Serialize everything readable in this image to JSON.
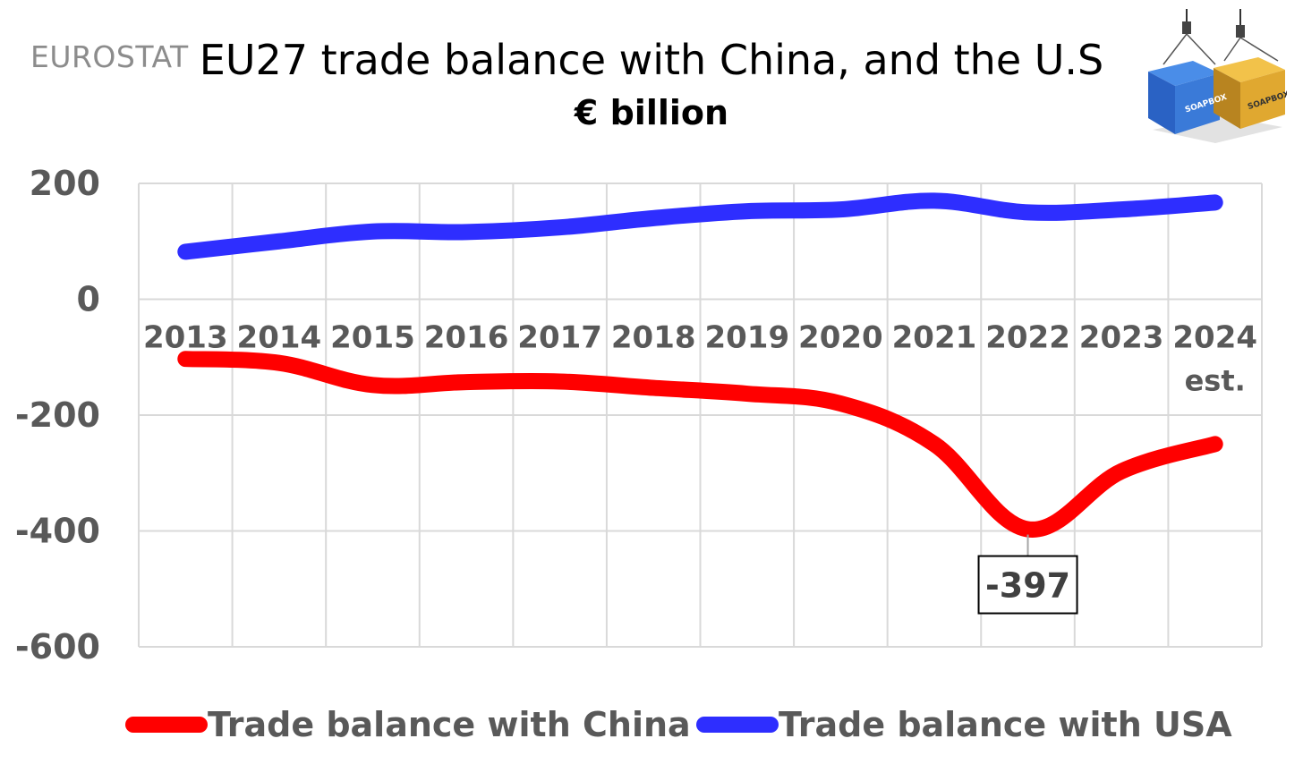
{
  "source_label": "EUROSTAT",
  "chart_data": {
    "type": "line",
    "title": "EU27 trade balance with China, and the U.S",
    "subtitle": "€ billion",
    "categories": [
      "2013",
      "2014",
      "2015",
      "2016",
      "2017",
      "2018",
      "2019",
      "2020",
      "2021",
      "2022",
      "2023",
      "2024"
    ],
    "category_sublabels": [
      "",
      "",
      "",
      "",
      "",
      "",
      "",
      "",
      "",
      "",
      "",
      "est."
    ],
    "series": [
      {
        "name": "Trade balance with China",
        "color": "#ff0000",
        "values": [
          -103,
          -110,
          -148,
          -143,
          -142,
          -153,
          -163,
          -180,
          -250,
          -397,
          -297,
          -250
        ]
      },
      {
        "name": "Trade balance with USA",
        "color": "#2e2eff",
        "values": [
          82,
          100,
          117,
          116,
          124,
          140,
          152,
          155,
          170,
          150,
          155,
          167
        ]
      }
    ],
    "y_ticks": [
      "200",
      "0",
      "-200",
      "-400",
      "-600"
    ],
    "ylim": [
      -600,
      200
    ],
    "grid": true,
    "legend_position": "bottom",
    "annotations": [
      {
        "series": "Trade balance with China",
        "category": "2022",
        "text": "-397"
      }
    ]
  },
  "logo": {
    "name": "soapbox-containers-logo",
    "text": "SOAPBOX",
    "colors": [
      "#2f6fd6",
      "#e0a830"
    ]
  }
}
